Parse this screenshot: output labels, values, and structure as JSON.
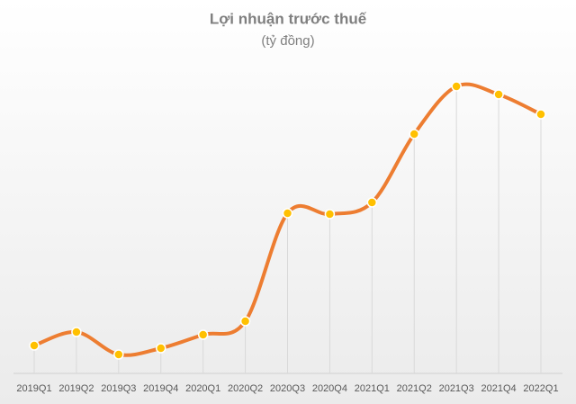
{
  "chart_data": {
    "type": "line",
    "title": "Lợi nhuận trước thuế",
    "subtitle": "(tỷ đồng)",
    "categories": [
      "2019Q1",
      "2019Q2",
      "2019Q3",
      "2019Q4",
      "2020Q1",
      "2020Q2",
      "2020Q3",
      "2020Q4",
      "2021Q1",
      "2021Q2",
      "2021Q3",
      "2021Q4",
      "2022Q1"
    ],
    "values": [
      31,
      46,
      21,
      28,
      43,
      58,
      178,
      177,
      190,
      266,
      319,
      310,
      288
    ],
    "color": "#ed7d31",
    "marker_color": "#ffc000",
    "ylim": [
      0,
      330
    ]
  }
}
